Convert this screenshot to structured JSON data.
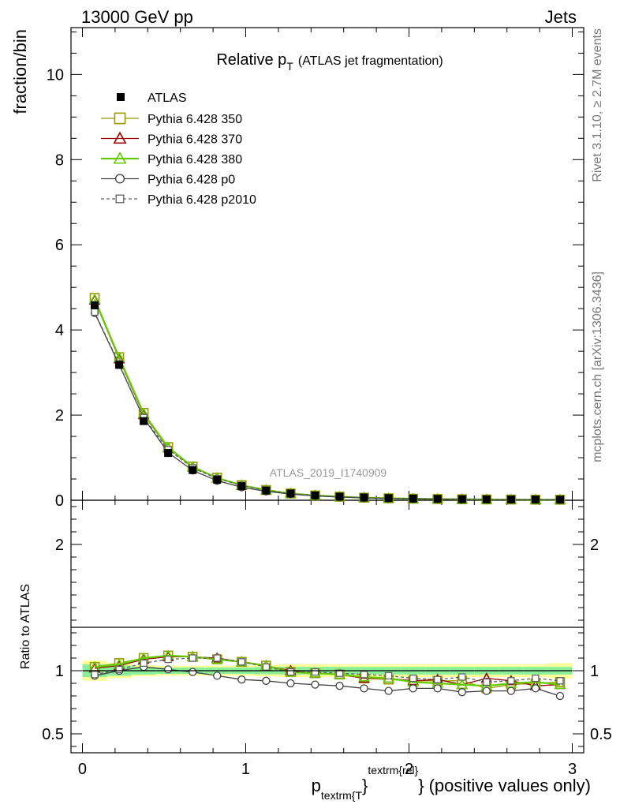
{
  "header": {
    "left": "13000 GeV pp",
    "right": "Jets"
  },
  "side_labels": {
    "rivet": "Rivet 3.1.10, ≥ 2.7M events",
    "mcplots": "mcplots.cern.ch [arXiv:1306.3436]"
  },
  "watermark": "ATLAS_2019_I1740909",
  "chart_data": {
    "type": "scatter",
    "title": {
      "main": "Relative p",
      "sub": "T",
      "tail": "(ATLAS jet fragmentation)"
    },
    "ylabel": "fraction/bin",
    "ratio_ylabel": "Ratio to ATLAS",
    "xlabel": {
      "p": "p",
      "sub": "textrm{T",
      "sup": "textrm{rel}",
      "close": "}",
      "tail": "(positive values only)"
    },
    "xlim": [
      -0.07,
      3.07
    ],
    "ylim": [
      0,
      11.1
    ],
    "ratio_ylim": [
      0.35,
      2.35
    ],
    "x_ticks": [
      0,
      1,
      2,
      3
    ],
    "y_ticks": [
      0,
      2,
      4,
      6,
      8,
      10
    ],
    "ratio_y_ticks": [
      0.5,
      1,
      2
    ],
    "ratio_y_tick_labels": [
      "0.5",
      "1",
      "2"
    ],
    "x": [
      0.075,
      0.225,
      0.375,
      0.525,
      0.675,
      0.825,
      0.975,
      1.125,
      1.275,
      1.425,
      1.575,
      1.725,
      1.875,
      2.025,
      2.175,
      2.325,
      2.475,
      2.625,
      2.775,
      2.925
    ],
    "data": {
      "name": "ATLAS",
      "values": [
        4.58,
        3.18,
        1.86,
        1.11,
        0.71,
        0.48,
        0.33,
        0.23,
        0.16,
        0.115,
        0.085,
        0.065,
        0.05,
        0.04,
        0.032,
        0.026,
        0.022,
        0.019,
        0.016,
        0.014
      ],
      "band_green": [
        0.05,
        0.04,
        0.03,
        0.025,
        0.025,
        0.025,
        0.025,
        0.028,
        0.03,
        0.03,
        0.03,
        0.03,
        0.03,
        0.03,
        0.03,
        0.03,
        0.03,
        0.03,
        0.03,
        0.03
      ],
      "band_yellow": [
        0.08,
        0.06,
        0.045,
        0.04,
        0.04,
        0.04,
        0.04,
        0.045,
        0.05,
        0.05,
        0.05,
        0.05,
        0.05,
        0.05,
        0.05,
        0.05,
        0.05,
        0.05,
        0.05,
        0.06
      ]
    },
    "series": [
      {
        "name": "Pythia 6.428 350",
        "color": "#999900",
        "marker": "square-open",
        "dash": "",
        "values": [
          4.75,
          3.36,
          2.05,
          1.25,
          0.79,
          0.53,
          0.355,
          0.24,
          0.158,
          0.113,
          0.083,
          0.061,
          0.047,
          0.037,
          0.029,
          0.024,
          0.019,
          0.017,
          0.014,
          0.013
        ],
        "ratio": [
          1.03,
          1.06,
          1.1,
          1.12,
          1.11,
          1.09,
          1.07,
          1.04,
          0.99,
          0.98,
          0.97,
          0.94,
          0.93,
          0.92,
          0.92,
          0.92,
          0.86,
          0.89,
          0.9,
          0.91
        ]
      },
      {
        "name": "Pythia 6.428 370",
        "color": "#990000",
        "marker": "triangle-open",
        "dash": "",
        "values": [
          4.7,
          3.32,
          2.01,
          1.23,
          0.78,
          0.525,
          0.35,
          0.24,
          0.16,
          0.113,
          0.083,
          0.061,
          0.047,
          0.037,
          0.03,
          0.024,
          0.02,
          0.017,
          0.014,
          0.013
        ],
        "ratio": [
          1.02,
          1.04,
          1.09,
          1.11,
          1.11,
          1.1,
          1.07,
          1.04,
          1.0,
          0.98,
          0.97,
          0.94,
          0.94,
          0.92,
          0.93,
          0.89,
          0.94,
          0.92,
          0.88,
          0.89
        ]
      },
      {
        "name": "Pythia 6.428 380",
        "color": "#66cc00",
        "marker": "triangle-open",
        "dash": "",
        "values": [
          4.72,
          3.35,
          2.04,
          1.24,
          0.785,
          0.525,
          0.353,
          0.24,
          0.158,
          0.113,
          0.083,
          0.061,
          0.047,
          0.037,
          0.029,
          0.023,
          0.019,
          0.017,
          0.014,
          0.013
        ],
        "ratio": [
          1.03,
          1.05,
          1.1,
          1.12,
          1.11,
          1.09,
          1.07,
          1.04,
          0.99,
          0.98,
          0.97,
          0.95,
          0.94,
          0.91,
          0.9,
          0.89,
          0.88,
          0.9,
          0.91,
          0.89
        ]
      },
      {
        "name": "Pythia 6.428 p0",
        "color": "#404040",
        "marker": "circle-open",
        "dash": "",
        "values": [
          4.4,
          3.18,
          1.93,
          1.12,
          0.7,
          0.46,
          0.305,
          0.21,
          0.144,
          0.103,
          0.075,
          0.056,
          0.042,
          0.034,
          0.028,
          0.022,
          0.018,
          0.016,
          0.014,
          0.011
        ],
        "ratio": [
          0.96,
          1.0,
          1.03,
          1.01,
          0.99,
          0.96,
          0.93,
          0.92,
          0.9,
          0.89,
          0.88,
          0.86,
          0.84,
          0.86,
          0.86,
          0.83,
          0.84,
          0.84,
          0.86,
          0.8
        ]
      },
      {
        "name": "Pythia 6.428 p2010",
        "color": "#606060",
        "marker": "square-small",
        "dash": "4,3",
        "values": [
          4.42,
          3.2,
          1.94,
          1.19,
          0.76,
          0.51,
          0.35,
          0.235,
          0.158,
          0.114,
          0.084,
          0.063,
          0.048,
          0.038,
          0.03,
          0.025,
          0.02,
          0.017,
          0.015,
          0.013
        ],
        "ratio": [
          0.97,
          1.01,
          1.06,
          1.09,
          1.1,
          1.1,
          1.07,
          1.03,
          0.99,
          0.99,
          0.98,
          0.97,
          0.96,
          0.94,
          0.93,
          0.95,
          0.91,
          0.92,
          0.94,
          0.92
        ]
      }
    ]
  }
}
